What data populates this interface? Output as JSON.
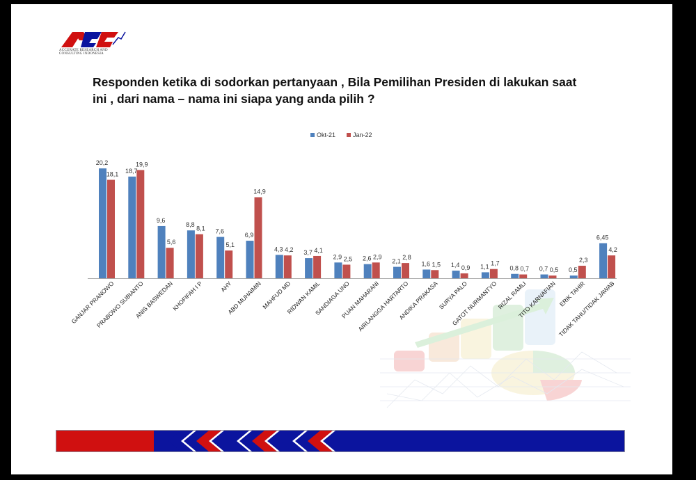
{
  "logo": {
    "name": "logo-icon",
    "caption": "ACCURATE RESEARCH AND CONSULTING INDONESIA"
  },
  "title": "Responden ketika di sodorkan pertanyaan , Bila Pemilihan Presiden di lakukan saat ini , dari nama – nama ini siapa yang anda pilih ?",
  "colors": {
    "okt21": "#4F81BD",
    "jan22": "#C0504D",
    "footer_red": "#D01010",
    "footer_blue": "#0B149E"
  },
  "chart_data": {
    "type": "bar",
    "title": "",
    "xlabel": "",
    "ylabel": "",
    "ylim": [
      0,
      22
    ],
    "grid": false,
    "legend_position": "top-center",
    "categories": [
      "GANJAR PRANOWO",
      "PRABOWO SUBIANTO",
      "ANIS BASWEDAN",
      "KHOFIFAH I P",
      "AHY",
      "ABD MUHAIMIN",
      "MAHFUD MD",
      "RIDWAN KAMIL",
      "SANDIAGA UNO",
      "PUAN MAHARANI",
      "AIRLANGGA HARTARTO",
      "ANDIKA PRAKASA",
      "SURYA PALO",
      "GATOT NURMANTYO",
      "RIZAL RAMLI",
      "TITO KARNAFIAN",
      "ERIK TAHIR",
      "TIDAK TAHU/TIDAK JAWAB"
    ],
    "series": [
      {
        "name": "Okt-21",
        "color": "#4F81BD",
        "values": [
          20.2,
          18.7,
          9.6,
          8.8,
          7.6,
          6.9,
          4.3,
          3.7,
          2.9,
          2.6,
          2.1,
          1.6,
          1.4,
          1.1,
          0.8,
          0.7,
          0.5,
          6.45
        ],
        "labels": [
          "20,2",
          "18,7",
          "9,6",
          "8,8",
          "7,6",
          "6,9",
          "4,3",
          "3,7",
          "2,9",
          "2,6",
          "2,1",
          "1,6",
          "1,4",
          "1,1",
          "0,8",
          "0,7",
          "0,5",
          "6,45"
        ]
      },
      {
        "name": "Jan-22",
        "color": "#C0504D",
        "values": [
          18.1,
          19.9,
          5.6,
          8.1,
          5.1,
          14.9,
          4.2,
          4.1,
          2.5,
          2.9,
          2.8,
          1.5,
          0.9,
          1.7,
          0.7,
          0.5,
          2.3,
          4.2
        ],
        "labels": [
          "18,1",
          "19,9",
          "5,6",
          "8,1",
          "5,1",
          "14,9",
          "4,2",
          "4,1",
          "2,5",
          "2,9",
          "2,8",
          "1,5",
          "0,9",
          "1,7",
          "0,7",
          "0,5",
          "2,3",
          "4,2"
        ]
      }
    ]
  }
}
